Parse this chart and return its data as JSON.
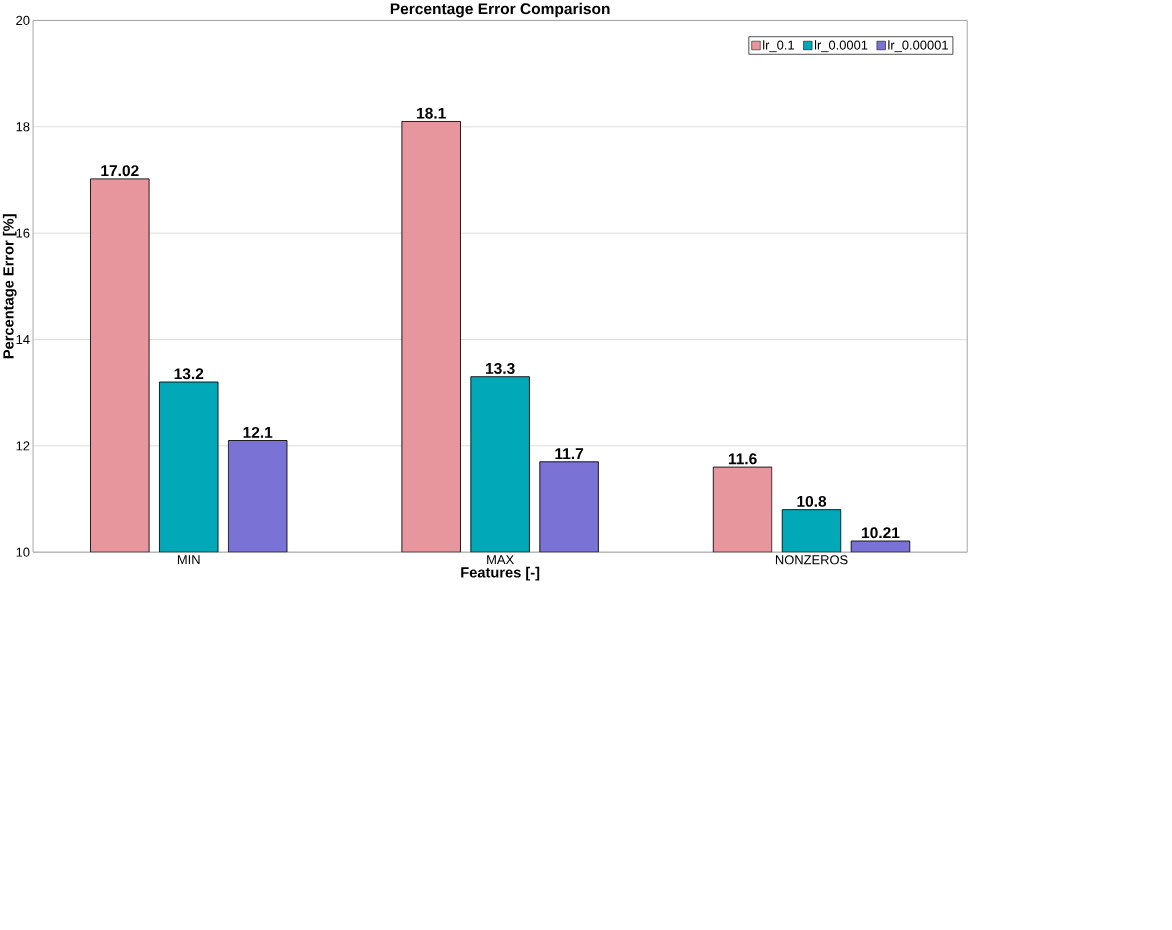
{
  "chart_data": {
    "type": "bar",
    "title": "Percentage Error Comparison",
    "xlabel": "Features [-]",
    "ylabel": "Percentage Error [%]",
    "categories": [
      "MIN",
      "MAX",
      "NONZEROS"
    ],
    "series": [
      {
        "name": "lr_0.1",
        "color": "#e8969e",
        "values": [
          17.02,
          18.1,
          11.6
        ]
      },
      {
        "name": "lr_0.0001",
        "color": "#00a8b8",
        "values": [
          13.2,
          13.3,
          10.8
        ]
      },
      {
        "name": "lr_0.00001",
        "color": "#7a72d4",
        "values": [
          12.1,
          11.7,
          10.21
        ]
      }
    ],
    "ylim": [
      10,
      20
    ],
    "yticks": [
      10,
      12,
      14,
      16,
      18,
      20
    ],
    "grid": "y",
    "legend": "top right",
    "data_labels": true
  }
}
